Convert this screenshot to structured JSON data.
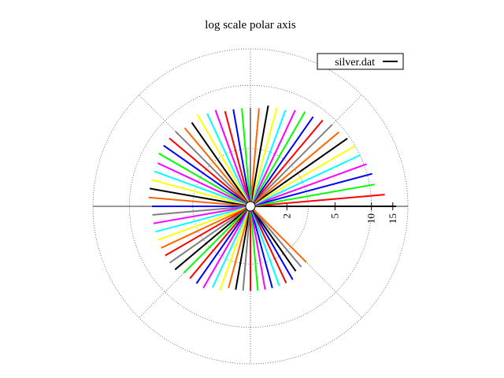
{
  "chart_data": {
    "type": "line",
    "title": "log scale polar axis",
    "polar": true,
    "radial_axis_scale": "log",
    "radial_ticks": [
      "2",
      "5",
      "10",
      "15"
    ],
    "grid": true,
    "legend": {
      "label": "silver.dat",
      "position": "top-right",
      "color": "#000000"
    },
    "series": [
      {
        "name": "silver.dat",
        "theta_degrees": [
          0,
          5,
          10,
          15,
          20,
          25,
          30,
          35,
          40,
          45,
          50,
          55,
          60,
          65,
          70,
          75,
          80,
          85,
          90,
          95,
          100,
          105,
          110,
          115,
          120,
          125,
          130,
          135,
          140,
          145,
          150,
          155,
          160,
          165,
          170,
          175,
          180,
          185,
          190,
          195,
          200,
          205,
          210,
          215,
          220,
          225,
          230,
          235,
          240,
          245,
          250,
          255,
          260,
          265,
          270,
          275,
          280,
          285,
          290,
          295,
          300,
          305,
          310,
          315
        ],
        "r": [
          16,
          13,
          11,
          11,
          10.5,
          10,
          10,
          9.5,
          9,
          9,
          8.5,
          8,
          8,
          7.5,
          7,
          7,
          7,
          6.5,
          6.5,
          6.5,
          6.5,
          6.5,
          7,
          7,
          7.5,
          7,
          7,
          7.5,
          7.5,
          7.5,
          7.5,
          7,
          7,
          7,
          7,
          7,
          6.5,
          6.5,
          6.5,
          6.5,
          6.5,
          6.5,
          6.5,
          6.5,
          6.5,
          6,
          6,
          6,
          6,
          5.5,
          5.5,
          5,
          5,
          5,
          5,
          5,
          5,
          5,
          5,
          5,
          5,
          4.5,
          4.5,
          4.5
        ],
        "colors": [
          "#000000",
          "#ff0000",
          "#00ff00",
          "#0000ff",
          "#ff00ff",
          "#00ffff",
          "#ffff00",
          "#000000",
          "#ff6600",
          "#808080",
          "#ff0000",
          "#0000ff",
          "#00ff00",
          "#ff00ff",
          "#00ffff",
          "#ffff00",
          "#000000",
          "#ff6600",
          "#808080",
          "#00ff00",
          "#0000ff",
          "#ff0000",
          "#ff00ff",
          "#00ffff",
          "#ffff00",
          "#000000",
          "#ff6600",
          "#808080",
          "#ff0000",
          "#0000ff",
          "#00ff00",
          "#ff00ff",
          "#00ffff",
          "#ffff00",
          "#000000",
          "#ff6600",
          "#0000ff",
          "#808080",
          "#ff00ff",
          "#00ffff",
          "#ffff00",
          "#ff6600",
          "#ff0000",
          "#808080",
          "#000000",
          "#00ff00",
          "#ff0000",
          "#0000ff",
          "#ff00ff",
          "#00ffff",
          "#ffff00",
          "#ff6600",
          "#000000",
          "#808080",
          "#ff0000",
          "#00ff00",
          "#ff00ff",
          "#0000ff",
          "#00ffff",
          "#ff0000",
          "#0000ff",
          "#000000",
          "#808080",
          "#ff6600"
        ]
      }
    ]
  }
}
